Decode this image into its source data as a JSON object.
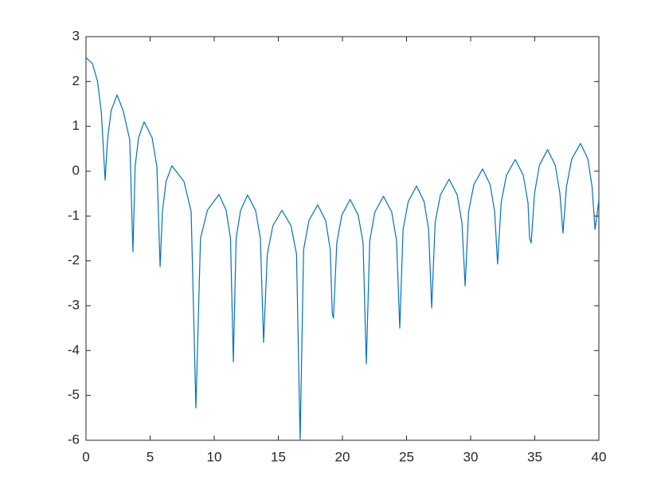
{
  "chart_data": {
    "type": "line",
    "x": [
      0,
      0.5,
      0.9,
      1.2,
      1.49,
      1.68,
      1.96,
      2.42,
      2.9,
      3.41,
      3.66,
      3.83,
      4.1,
      4.53,
      5.15,
      5.53,
      5.78,
      5.96,
      6.24,
      6.7,
      7.64,
      8.2,
      8.57,
      8.93,
      9.47,
      10.37,
      10.93,
      11.27,
      11.49,
      11.71,
      12.05,
      12.6,
      13.23,
      13.6,
      13.85,
      14.14,
      14.57,
      15.28,
      15.99,
      16.42,
      16.7,
      16.97,
      17.39,
      18.07,
      18.69,
      19.05,
      19.2,
      19.3,
      19.56,
      19.95,
      20.6,
      21.23,
      21.61,
      21.86,
      22.13,
      22.53,
      23.2,
      23.84,
      24.22,
      24.47,
      24.73,
      25.13,
      25.78,
      26.37,
      26.72,
      26.96,
      27.23,
      27.64,
      28.32,
      28.95,
      29.32,
      29.57,
      29.84,
      30.25,
      30.93,
      31.52,
      31.87,
      32.1,
      32.38,
      32.79,
      33.48,
      34.1,
      34.47,
      34.6,
      34.72,
      34.98,
      35.36,
      36.0,
      36.6,
      36.96,
      37.2,
      37.47,
      37.88,
      38.57,
      39.14,
      39.47,
      39.7,
      40
    ],
    "series": [
      {
        "color": "#0072bd",
        "values": [
          2.53,
          2.4,
          2.0,
          1.3,
          -0.2,
          0.7,
          1.35,
          1.7,
          1.35,
          0.7,
          -1.8,
          0.1,
          0.75,
          1.1,
          0.75,
          0.1,
          -2.13,
          -0.9,
          -0.23,
          0.12,
          -0.23,
          -0.9,
          -5.28,
          -1.5,
          -0.87,
          -0.52,
          -0.87,
          -1.5,
          -4.25,
          -1.5,
          -0.88,
          -0.53,
          -0.88,
          -1.5,
          -3.82,
          -1.85,
          -1.22,
          -0.87,
          -1.22,
          -1.85,
          -6,
          -1.75,
          -1.1,
          -0.75,
          -1.1,
          -1.75,
          -3.15,
          -3.28,
          -1.6,
          -0.98,
          -0.63,
          -0.98,
          -1.6,
          -4.3,
          -1.55,
          -0.91,
          -0.56,
          -0.91,
          -1.55,
          -3.5,
          -1.3,
          -0.68,
          -0.33,
          -0.68,
          -1.3,
          -3.05,
          -1.15,
          -0.53,
          -0.18,
          -0.53,
          -1.15,
          -2.56,
          -0.9,
          -0.3,
          0.05,
          -0.3,
          -0.9,
          -2.07,
          -0.7,
          -0.09,
          0.26,
          -0.09,
          -0.7,
          -1.5,
          -1.6,
          -0.5,
          0.13,
          0.48,
          0.13,
          -0.5,
          -1.38,
          -0.35,
          0.27,
          0.62,
          0.27,
          -0.35,
          -1.3,
          -0.65
        ]
      }
    ],
    "xlim": [
      0,
      40
    ],
    "xticks": [
      0,
      5,
      10,
      15,
      20,
      25,
      30,
      35,
      40
    ],
    "ylim": [
      -6,
      3
    ],
    "yticks": [
      -6,
      -5,
      -4,
      -3,
      -2,
      -1,
      0,
      1,
      2,
      3
    ],
    "grid": false
  }
}
